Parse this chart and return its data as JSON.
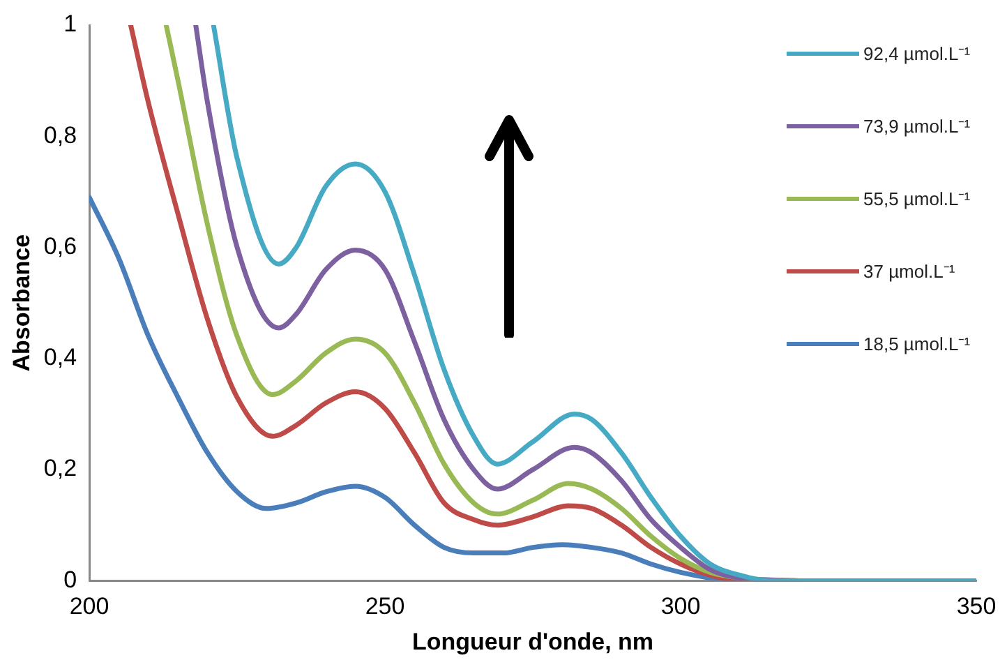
{
  "chart_data": {
    "type": "line",
    "xlabel": "Longueur d'onde, nm",
    "ylabel": "Absorbance",
    "xlim": [
      200,
      350
    ],
    "xticks": [
      200,
      250,
      300,
      350
    ],
    "ylim": [
      0,
      1
    ],
    "yticks": [
      {
        "value": 0,
        "label": "0"
      },
      {
        "value": 0.2,
        "label": "0,2"
      },
      {
        "value": 0.4,
        "label": "0,4"
      },
      {
        "value": 0.6,
        "label": "0,6"
      },
      {
        "value": 0.8,
        "label": "0,8"
      },
      {
        "value": 1,
        "label": "1"
      }
    ],
    "legend": "top right",
    "marker": "none",
    "series": [
      {
        "name": "92,4 µmol.L⁻¹",
        "color": "#46aac5",
        "x": [
          221,
          225,
          232,
          235,
          240,
          245,
          250,
          255,
          260,
          265,
          269,
          275,
          282,
          285,
          290,
          295,
          300,
          305,
          310,
          315,
          320,
          335,
          350
        ],
        "values": [
          1,
          0.76,
          0.57,
          0.6,
          0.71,
          0.75,
          0.7,
          0.55,
          0.38,
          0.26,
          0.21,
          0.25,
          0.3,
          0.29,
          0.23,
          0.15,
          0.08,
          0.03,
          0.01,
          0,
          0,
          0,
          0
        ]
      },
      {
        "name": "73,9 µmol.L⁻¹",
        "color": "#7d60a0",
        "x": [
          218,
          220,
          225,
          232,
          235,
          240,
          245,
          250,
          255,
          260,
          265,
          269,
          275,
          282,
          285,
          290,
          295,
          300,
          305,
          310,
          320
        ],
        "values": [
          1,
          0.86,
          0.6,
          0.455,
          0.48,
          0.56,
          0.595,
          0.56,
          0.43,
          0.29,
          0.2,
          0.165,
          0.2,
          0.24,
          0.23,
          0.18,
          0.11,
          0.06,
          0.02,
          0.005,
          0
        ]
      },
      {
        "name": "55,5 µmol.L⁻¹",
        "color": "#98b954",
        "x": [
          213,
          215,
          220,
          225,
          231,
          235,
          240,
          245,
          250,
          255,
          260,
          265,
          269,
          275,
          281,
          285,
          290,
          295,
          300,
          305,
          310,
          320
        ],
        "values": [
          1,
          0.9,
          0.64,
          0.44,
          0.335,
          0.36,
          0.41,
          0.435,
          0.41,
          0.32,
          0.21,
          0.14,
          0.12,
          0.145,
          0.175,
          0.165,
          0.13,
          0.08,
          0.04,
          0.015,
          0.005,
          0
        ]
      },
      {
        "name": "37 µmol.L⁻¹",
        "color": "#be4b48",
        "x": [
          207,
          210,
          215,
          220,
          225,
          231,
          235,
          240,
          245,
          250,
          255,
          260,
          265,
          269,
          275,
          281,
          285,
          290,
          295,
          300,
          305,
          310,
          320
        ],
        "values": [
          1,
          0.86,
          0.66,
          0.47,
          0.33,
          0.26,
          0.28,
          0.32,
          0.34,
          0.31,
          0.23,
          0.14,
          0.11,
          0.1,
          0.115,
          0.135,
          0.13,
          0.1,
          0.06,
          0.03,
          0.01,
          0,
          0
        ]
      },
      {
        "name": "18,5 µmol.L⁻¹",
        "color": "#4a7ebb",
        "x": [
          200,
          205,
          210,
          215,
          220,
          225,
          230,
          235,
          240,
          245,
          250,
          255,
          260,
          265,
          270,
          275,
          280,
          285,
          290,
          295,
          300,
          305,
          310,
          320
        ],
        "values": [
          0.69,
          0.58,
          0.44,
          0.33,
          0.23,
          0.16,
          0.13,
          0.14,
          0.16,
          0.17,
          0.15,
          0.1,
          0.06,
          0.05,
          0.05,
          0.06,
          0.065,
          0.06,
          0.05,
          0.03,
          0.015,
          0.005,
          0,
          0
        ]
      }
    ]
  }
}
